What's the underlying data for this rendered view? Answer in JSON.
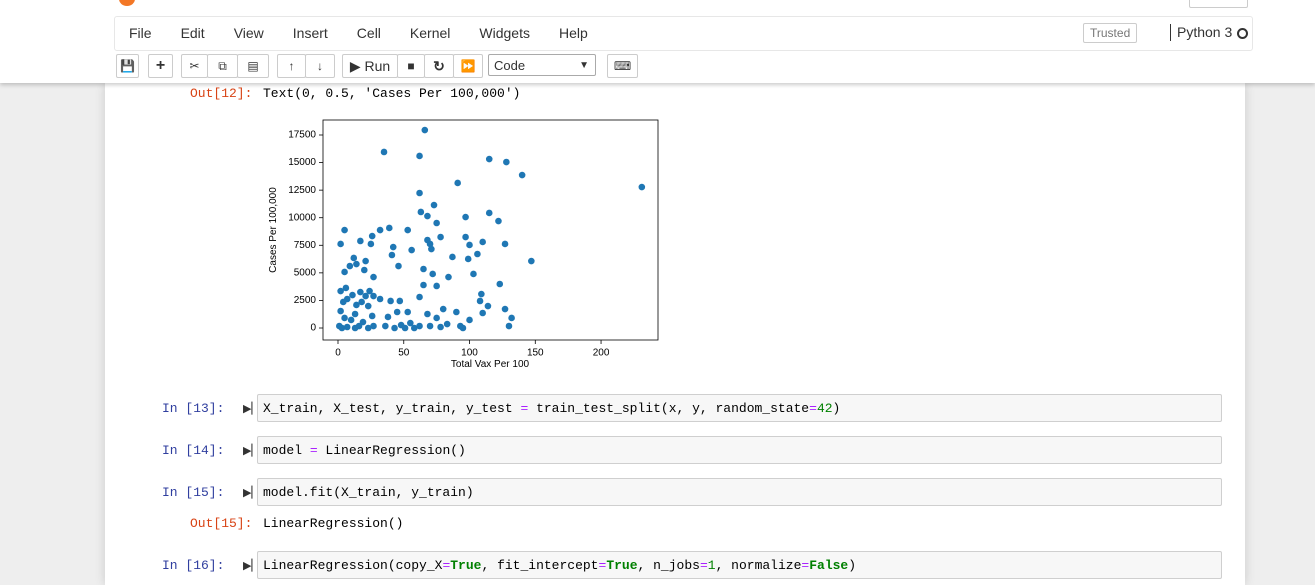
{
  "menu": [
    "File",
    "Edit",
    "View",
    "Insert",
    "Cell",
    "Kernel",
    "Widgets",
    "Help"
  ],
  "trusted": "Trusted",
  "kernel": "Python 3",
  "toolbar": {
    "run": "Run",
    "cell_type": "Code"
  },
  "output_12": {
    "prompt": "Out[12]:",
    "text": "Text(0, 0.5, 'Cases Per 100,000')"
  },
  "chart_data": {
    "type": "scatter",
    "xlabel": "Total Vax Per 100",
    "ylabel": "Cases Per 100,000",
    "color": "#1f77b4",
    "xlim": [
      -11.4,
      243.3
    ],
    "ylim": [
      -1088,
      18860
    ],
    "xticks": [
      0,
      50,
      100,
      150,
      200
    ],
    "yticks": [
      0,
      2500,
      5000,
      7500,
      10000,
      12500,
      15000,
      17500
    ],
    "x": [
      66,
      35,
      62,
      115,
      128,
      140,
      231,
      91,
      62,
      73,
      63,
      115,
      97,
      68,
      122,
      75,
      5,
      39,
      32,
      53,
      97,
      78,
      68,
      17,
      26,
      127,
      110,
      2,
      25,
      42,
      100,
      70,
      56,
      71,
      41,
      106,
      12,
      99,
      21,
      87,
      147,
      46,
      14,
      65,
      9,
      5,
      72,
      103,
      20,
      84,
      27,
      65,
      123,
      6,
      24,
      17,
      75,
      2,
      11,
      109,
      21,
      27,
      32,
      7,
      62,
      4,
      18,
      40,
      47,
      108,
      14,
      23,
      114,
      45,
      53,
      80,
      90,
      127,
      68,
      110,
      2,
      13,
      26,
      132,
      75,
      38,
      100,
      5,
      10,
      19,
      55,
      93,
      130,
      48,
      16,
      27,
      1,
      7,
      36,
      62,
      78,
      70,
      13,
      58,
      83,
      43,
      95,
      3,
      23,
      51
    ],
    "values": [
      17950,
      15960,
      15600,
      15320,
      15050,
      13870,
      12780,
      13150,
      12240,
      11150,
      10520,
      10430,
      10060,
      10150,
      9700,
      9520,
      8880,
      9070,
      8880,
      8880,
      8250,
      8250,
      7980,
      7890,
      8340,
      7620,
      7800,
      7620,
      7620,
      7340,
      7530,
      7620,
      7070,
      7160,
      6620,
      6710,
      6350,
      6260,
      6070,
      6440,
      6070,
      5620,
      5800,
      5350,
      5620,
      5080,
      4900,
      4900,
      5260,
      4620,
      4620,
      3900,
      3990,
      3630,
      3350,
      3260,
      3810,
      3350,
      2990,
      3080,
      2900,
      2900,
      2630,
      2630,
      2810,
      2360,
      2360,
      2450,
      2450,
      2450,
      2090,
      1990,
      1990,
      1450,
      1450,
      1720,
      1450,
      1720,
      1270,
      1360,
      1540,
      1270,
      1090,
      910,
      910,
      1000,
      730,
      910,
      730,
      540,
      450,
      180,
      180,
      270,
      180,
      180,
      180,
      90,
      180,
      180,
      90,
      180,
      0,
      0,
      360,
      0,
      0,
      0,
      0,
      0
    ]
  },
  "cells": [
    {
      "prompt": "In [13]:",
      "code": [
        {
          "text": "X_train, X_test, y_train, y_test ",
          "color": "#000000"
        },
        {
          "text": "=",
          "color": "#aa22ff"
        },
        {
          "text": " train_test_split(x, y, random_state",
          "color": "#000000"
        },
        {
          "text": "=",
          "color": "#aa22ff"
        },
        {
          "text": "42",
          "color": "#008000"
        },
        {
          "text": ")",
          "color": "#000000"
        }
      ]
    },
    {
      "prompt": "In [14]:",
      "code": [
        {
          "text": "model ",
          "color": "#000000"
        },
        {
          "text": "=",
          "color": "#aa22ff"
        },
        {
          "text": " LinearRegression()",
          "color": "#000000"
        }
      ]
    },
    {
      "prompt": "In [15]:",
      "code": [
        {
          "text": "model.fit(X_train, y_train)",
          "color": "#000000"
        }
      ],
      "output": {
        "prompt": "Out[15]:",
        "text": "LinearRegression()"
      }
    },
    {
      "prompt": "In [16]:",
      "code": [
        {
          "text": "LinearRegression(copy_X",
          "color": "#000000"
        },
        {
          "text": "=",
          "color": "#aa22ff"
        },
        {
          "text": "True",
          "color": "#008000",
          "weight": "bold"
        },
        {
          "text": ", fit_intercept",
          "color": "#000000"
        },
        {
          "text": "=",
          "color": "#aa22ff"
        },
        {
          "text": "True",
          "color": "#008000",
          "weight": "bold"
        },
        {
          "text": ", n_jobs",
          "color": "#000000"
        },
        {
          "text": "=",
          "color": "#aa22ff"
        },
        {
          "text": "1",
          "color": "#008000"
        },
        {
          "text": ", normalize",
          "color": "#000000"
        },
        {
          "text": "=",
          "color": "#aa22ff"
        },
        {
          "text": "False",
          "color": "#008000",
          "weight": "bold"
        },
        {
          "text": ")",
          "color": "#000000"
        }
      ]
    }
  ]
}
